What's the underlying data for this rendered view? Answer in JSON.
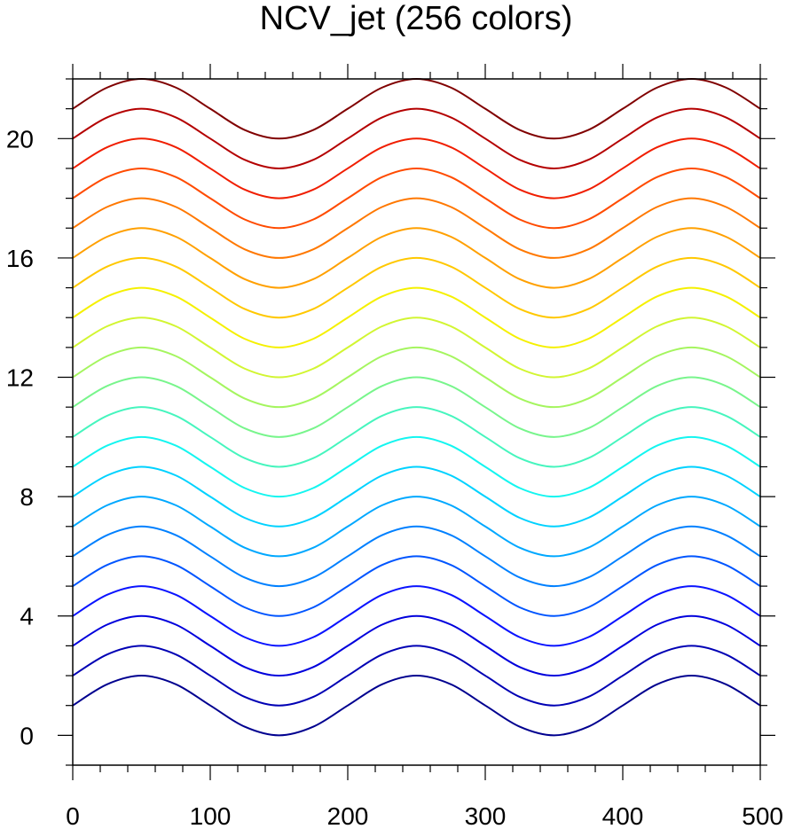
{
  "chart_data": {
    "type": "line",
    "title": "NCV_jet (256 colors)",
    "xlabel": "",
    "ylabel": "",
    "xlim": [
      0,
      500
    ],
    "ylim": [
      -1,
      22
    ],
    "grid": false,
    "legend": "none",
    "x_ticks": {
      "major": [
        0,
        100,
        200,
        300,
        400,
        500
      ],
      "labels": [
        "0",
        "100",
        "200",
        "300",
        "400",
        "500"
      ],
      "minor_step": 20
    },
    "y_ticks": {
      "major": [
        0,
        4,
        8,
        12,
        16,
        20
      ],
      "labels": [
        "0",
        "4",
        "8",
        "12",
        "16",
        "20"
      ],
      "minor_step": 1
    },
    "x": [
      0,
      25,
      50,
      75,
      100,
      125,
      150,
      175,
      200,
      225,
      250,
      275,
      300,
      325,
      350,
      375,
      400,
      425,
      450,
      475,
      500
    ],
    "series": [
      {
        "color": "#00008f",
        "values": [
          1.0,
          1.71,
          2.0,
          1.71,
          1.0,
          0.29,
          0.0,
          0.29,
          1.0,
          1.71,
          2.0,
          1.71,
          1.0,
          0.29,
          0.0,
          0.29,
          1.0,
          1.71,
          2.0,
          1.71,
          1.0
        ]
      },
      {
        "color": "#0000b4",
        "values": [
          2.0,
          2.71,
          3.0,
          2.71,
          2.0,
          1.29,
          1.0,
          1.29,
          2.0,
          2.71,
          3.0,
          2.71,
          2.0,
          1.29,
          1.0,
          1.29,
          2.0,
          2.71,
          3.0,
          2.71,
          2.0
        ]
      },
      {
        "color": "#0000dc",
        "values": [
          3.0,
          3.71,
          4.0,
          3.71,
          3.0,
          2.29,
          2.0,
          2.29,
          3.0,
          3.71,
          4.0,
          3.71,
          3.0,
          2.29,
          2.0,
          2.29,
          3.0,
          3.71,
          4.0,
          3.71,
          3.0
        ]
      },
      {
        "color": "#0a14ff",
        "values": [
          4.0,
          4.71,
          5.0,
          4.71,
          4.0,
          3.29,
          3.0,
          3.29,
          4.0,
          4.71,
          5.0,
          4.71,
          4.0,
          3.29,
          3.0,
          3.29,
          4.0,
          4.71,
          5.0,
          4.71,
          4.0
        ]
      },
      {
        "color": "#0055ff",
        "values": [
          5.0,
          5.71,
          6.0,
          5.71,
          5.0,
          4.29,
          4.0,
          4.29,
          5.0,
          5.71,
          6.0,
          5.71,
          5.0,
          4.29,
          4.0,
          4.29,
          5.0,
          5.71,
          6.0,
          5.71,
          5.0
        ]
      },
      {
        "color": "#0080ff",
        "values": [
          6.0,
          6.71,
          7.0,
          6.71,
          6.0,
          5.29,
          5.0,
          5.29,
          6.0,
          6.71,
          7.0,
          6.71,
          6.0,
          5.29,
          5.0,
          5.29,
          6.0,
          6.71,
          7.0,
          6.71,
          6.0
        ]
      },
      {
        "color": "#00a8ff",
        "values": [
          7.0,
          7.71,
          8.0,
          7.71,
          7.0,
          6.29,
          6.0,
          6.29,
          7.0,
          7.71,
          8.0,
          7.71,
          7.0,
          6.29,
          6.0,
          6.29,
          7.0,
          7.71,
          8.0,
          7.71,
          7.0
        ]
      },
      {
        "color": "#00d2ff",
        "values": [
          8.0,
          8.71,
          9.0,
          8.71,
          8.0,
          7.29,
          7.0,
          7.29,
          8.0,
          8.71,
          9.0,
          8.71,
          8.0,
          7.29,
          7.0,
          7.29,
          8.0,
          8.71,
          9.0,
          8.71,
          8.0
        ]
      },
      {
        "color": "#14f5f0",
        "values": [
          9.0,
          9.71,
          10.0,
          9.71,
          9.0,
          8.29,
          8.0,
          8.29,
          9.0,
          9.71,
          10.0,
          9.71,
          9.0,
          8.29,
          8.0,
          8.29,
          9.0,
          9.71,
          10.0,
          9.71,
          9.0
        ]
      },
      {
        "color": "#46f5be",
        "values": [
          10.0,
          10.71,
          11.0,
          10.71,
          10.0,
          9.29,
          9.0,
          9.29,
          10.0,
          10.71,
          11.0,
          10.71,
          10.0,
          9.29,
          9.0,
          9.29,
          10.0,
          10.71,
          11.0,
          10.71,
          10.0
        ]
      },
      {
        "color": "#78f58c",
        "values": [
          11.0,
          11.71,
          12.0,
          11.71,
          11.0,
          10.29,
          10.0,
          10.29,
          11.0,
          11.71,
          12.0,
          11.71,
          11.0,
          10.29,
          10.0,
          10.29,
          11.0,
          11.71,
          12.0,
          11.71,
          11.0
        ]
      },
      {
        "color": "#a5f55f",
        "values": [
          12.0,
          12.71,
          13.0,
          12.71,
          12.0,
          11.29,
          11.0,
          11.29,
          12.0,
          12.71,
          13.0,
          12.71,
          12.0,
          11.29,
          11.0,
          11.29,
          12.0,
          12.71,
          13.0,
          12.71,
          12.0
        ]
      },
      {
        "color": "#d2f532",
        "values": [
          13.0,
          13.71,
          14.0,
          13.71,
          13.0,
          12.29,
          12.0,
          12.29,
          13.0,
          13.71,
          14.0,
          13.71,
          13.0,
          12.29,
          12.0,
          12.29,
          13.0,
          13.71,
          14.0,
          13.71,
          13.0
        ]
      },
      {
        "color": "#f5f000",
        "values": [
          14.0,
          14.71,
          15.0,
          14.71,
          14.0,
          13.29,
          13.0,
          13.29,
          14.0,
          14.71,
          15.0,
          14.71,
          14.0,
          13.29,
          13.0,
          13.29,
          14.0,
          14.71,
          15.0,
          14.71,
          14.0
        ]
      },
      {
        "color": "#ffc800",
        "values": [
          15.0,
          15.71,
          16.0,
          15.71,
          15.0,
          14.29,
          14.0,
          14.29,
          15.0,
          15.71,
          16.0,
          15.71,
          15.0,
          14.29,
          14.0,
          14.29,
          15.0,
          15.71,
          16.0,
          15.71,
          15.0
        ]
      },
      {
        "color": "#ffa000",
        "values": [
          16.0,
          16.71,
          17.0,
          16.71,
          16.0,
          15.29,
          15.0,
          15.29,
          16.0,
          16.71,
          17.0,
          16.71,
          16.0,
          15.29,
          15.0,
          15.29,
          16.0,
          16.71,
          17.0,
          16.71,
          16.0
        ]
      },
      {
        "color": "#ff7800",
        "values": [
          17.0,
          17.71,
          18.0,
          17.71,
          17.0,
          16.29,
          16.0,
          16.29,
          17.0,
          17.71,
          18.0,
          17.71,
          17.0,
          16.29,
          16.0,
          16.29,
          17.0,
          17.71,
          18.0,
          17.71,
          17.0
        ]
      },
      {
        "color": "#ff4b00",
        "values": [
          18.0,
          18.71,
          19.0,
          18.71,
          18.0,
          17.29,
          17.0,
          17.29,
          18.0,
          18.71,
          19.0,
          18.71,
          18.0,
          17.29,
          17.0,
          17.29,
          18.0,
          18.71,
          19.0,
          18.71,
          18.0
        ]
      },
      {
        "color": "#f01e00",
        "values": [
          19.0,
          19.71,
          20.0,
          19.71,
          19.0,
          18.29,
          18.0,
          18.29,
          19.0,
          19.71,
          20.0,
          19.71,
          19.0,
          18.29,
          18.0,
          18.29,
          19.0,
          19.71,
          20.0,
          19.71,
          19.0
        ]
      },
      {
        "color": "#b40000",
        "values": [
          20.0,
          20.71,
          21.0,
          20.71,
          20.0,
          19.29,
          19.0,
          19.29,
          20.0,
          20.71,
          21.0,
          20.71,
          20.0,
          19.29,
          19.0,
          19.29,
          20.0,
          20.71,
          21.0,
          20.71,
          20.0
        ]
      },
      {
        "color": "#800000",
        "values": [
          21.0,
          21.71,
          22.0,
          21.71,
          21.0,
          20.29,
          20.0,
          20.29,
          21.0,
          21.71,
          22.0,
          21.71,
          21.0,
          20.29,
          20.0,
          20.29,
          21.0,
          21.71,
          22.0,
          21.71,
          21.0
        ]
      }
    ]
  }
}
